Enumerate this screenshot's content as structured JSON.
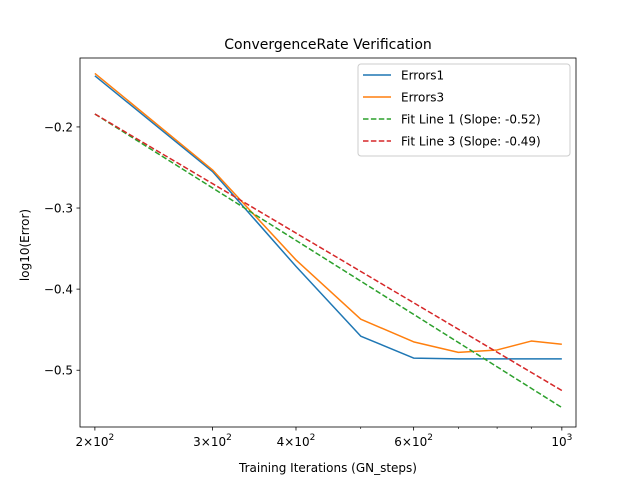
{
  "chart_data": {
    "type": "line",
    "title": "ConvergenceRate Verification",
    "xlabel": "Training Iterations (GN_steps)",
    "ylabel": "log10(Error)",
    "xscale": "log",
    "xlim": [
      190,
      1050
    ],
    "ylim": [
      -0.57,
      -0.115
    ],
    "x_ticks": [
      {
        "value": 200,
        "base": "2×10",
        "exp": "2"
      },
      {
        "value": 300,
        "base": "3×10",
        "exp": "2"
      },
      {
        "value": 400,
        "base": "4×10",
        "exp": "2"
      },
      {
        "value": 600,
        "base": "6×10",
        "exp": "2"
      },
      {
        "value": 1000,
        "base": "10",
        "exp": "3"
      }
    ],
    "y_ticks": [
      {
        "value": -0.2,
        "label": "−0.2"
      },
      {
        "value": -0.3,
        "label": "−0.3"
      },
      {
        "value": -0.4,
        "label": "−0.4"
      },
      {
        "value": -0.5,
        "label": "−0.5"
      }
    ],
    "legend_position": "top-right",
    "grid": false,
    "series": [
      {
        "name": "Errors1",
        "color": "#1f77b4",
        "style": "solid",
        "x": [
          200,
          300,
          400,
          500,
          600,
          700,
          800,
          900,
          1000
        ],
        "y": [
          -0.137,
          -0.255,
          -0.372,
          -0.458,
          -0.485,
          -0.486,
          -0.486,
          -0.486,
          -0.486
        ]
      },
      {
        "name": "Errors3",
        "color": "#ff7f0e",
        "style": "solid",
        "x": [
          200,
          300,
          400,
          500,
          600,
          700,
          800,
          900,
          1000
        ],
        "y": [
          -0.134,
          -0.253,
          -0.364,
          -0.437,
          -0.465,
          -0.478,
          -0.475,
          -0.464,
          -0.468
        ]
      },
      {
        "name": "Fit Line 1 (Slope: -0.52)",
        "color": "#2ca02c",
        "style": "dashed",
        "x": [
          200,
          1000
        ],
        "y": [
          -0.184,
          -0.546
        ]
      },
      {
        "name": "Fit Line 3 (Slope: -0.49)",
        "color": "#d62728",
        "style": "dashed",
        "x": [
          200,
          1000
        ],
        "y": [
          -0.184,
          -0.525
        ]
      }
    ]
  }
}
